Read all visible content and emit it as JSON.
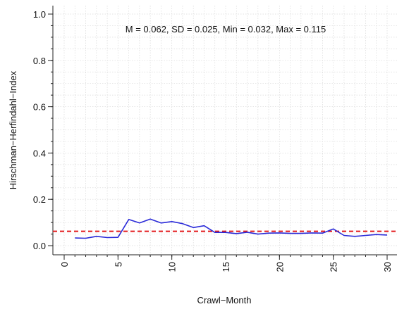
{
  "chart_data": {
    "type": "line",
    "title": "",
    "xlabel": "Crawl−Month",
    "ylabel": "Hirschman−Herfindahl−Index",
    "annotation": "M = 0.062, SD = 0.025, Min = 0.032, Max = 0.115",
    "xlim": [
      0,
      30.5
    ],
    "ylim": [
      0,
      1.0
    ],
    "xticks": [
      0,
      5,
      10,
      15,
      20,
      25,
      30
    ],
    "xtick_labels": [
      "0",
      "5",
      "10",
      "15",
      "20",
      "25",
      "30"
    ],
    "yticks": [
      0.0,
      0.2,
      0.4,
      0.6,
      0.8,
      1.0
    ],
    "ytick_labels": [
      "0.0",
      "0.2",
      "0.4",
      "0.6",
      "0.8",
      "1.0"
    ],
    "grid": true,
    "reference_line": {
      "y": 0.062,
      "color": "#e31a1c",
      "style": "dashed"
    },
    "series": [
      {
        "color": "#2a2ad8",
        "x": [
          1,
          2,
          3,
          4,
          5,
          6,
          7,
          8,
          9,
          10,
          11,
          12,
          13,
          14,
          15,
          16,
          17,
          18,
          19,
          20,
          21,
          22,
          23,
          24,
          25,
          26,
          27,
          28,
          29,
          30
        ],
        "y": [
          0.033,
          0.032,
          0.04,
          0.035,
          0.036,
          0.113,
          0.098,
          0.115,
          0.098,
          0.104,
          0.095,
          0.078,
          0.086,
          0.057,
          0.057,
          0.052,
          0.058,
          0.05,
          0.054,
          0.055,
          0.053,
          0.053,
          0.055,
          0.054,
          0.072,
          0.044,
          0.04,
          0.044,
          0.048,
          0.046
        ]
      }
    ]
  }
}
